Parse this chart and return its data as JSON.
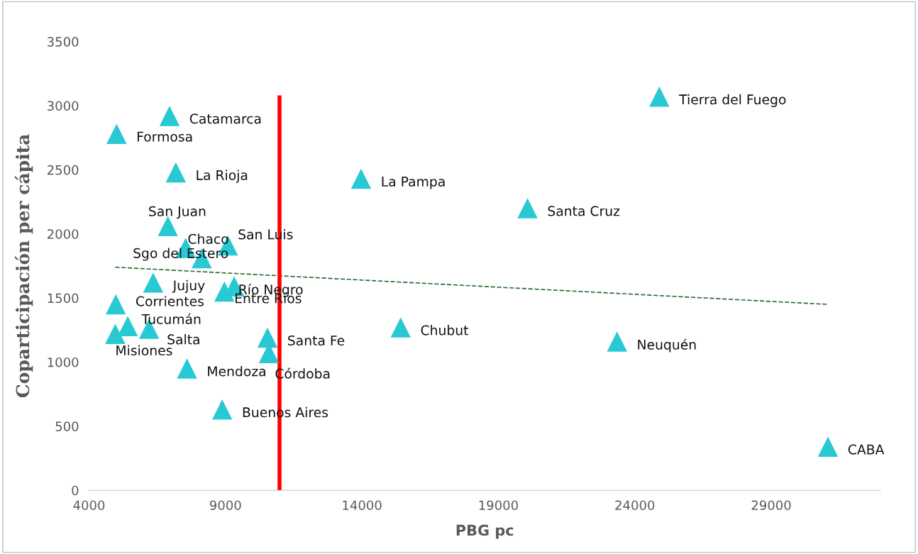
{
  "chart_data": {
    "type": "scatter",
    "xlabel": "PBG pc",
    "ylabel": "Coparticipación per cápita",
    "xlim": [
      4000,
      33000
    ],
    "ylim": [
      0,
      3500
    ],
    "xticks": [
      4000,
      9000,
      14000,
      19000,
      24000,
      29000
    ],
    "yticks": [
      0,
      500,
      1000,
      1500,
      2000,
      2500,
      3000,
      3500
    ],
    "grid": false,
    "legend": false,
    "series": [
      {
        "color": "#29c9d4",
        "marker": "triangle",
        "x": [
          24900,
          6950,
          5010,
          7180,
          13970,
          20070,
          6890,
          9090,
          7540,
          8130,
          6350,
          9320,
          8960,
          4980,
          5420,
          6200,
          4960,
          10540,
          15420,
          10590,
          23350,
          7590,
          8880,
          31080
        ],
        "values": [
          3070,
          2920,
          2780,
          2480,
          2430,
          2200,
          2060,
          1910,
          1890,
          1810,
          1620,
          1590,
          1550,
          1450,
          1280,
          1260,
          1220,
          1190,
          1270,
          1070,
          1160,
          950,
          630,
          340
        ],
        "value_labels": [
          "Tierra del Fuego",
          "Catamarca",
          "Formosa",
          "La Rioja",
          "La Pampa",
          "Santa Cruz",
          "San Juan",
          "San Luis",
          "Chaco",
          "Sgo del Estero",
          "Jujuy",
          "Río Negro",
          "Entre Ríos",
          "Corrientes",
          "Tucumán",
          "Salta",
          "Misiones",
          "Santa Fe",
          "Chubut",
          "Córdoba",
          "Neuquén",
          "Mendoza",
          "Buenos Aires",
          "CABA"
        ]
      },
      {
        "type": "line",
        "color": "#2e6b30",
        "marker": "none",
        "line_style": "dashed",
        "x": [
          4960,
          31080
        ],
        "values": [
          1740,
          1450
        ]
      },
      {
        "type": "line",
        "color": "#ff0000",
        "marker": "none",
        "line_style": "solid",
        "x": [
          10980,
          10980
        ],
        "values": [
          0,
          3080
        ]
      }
    ]
  }
}
